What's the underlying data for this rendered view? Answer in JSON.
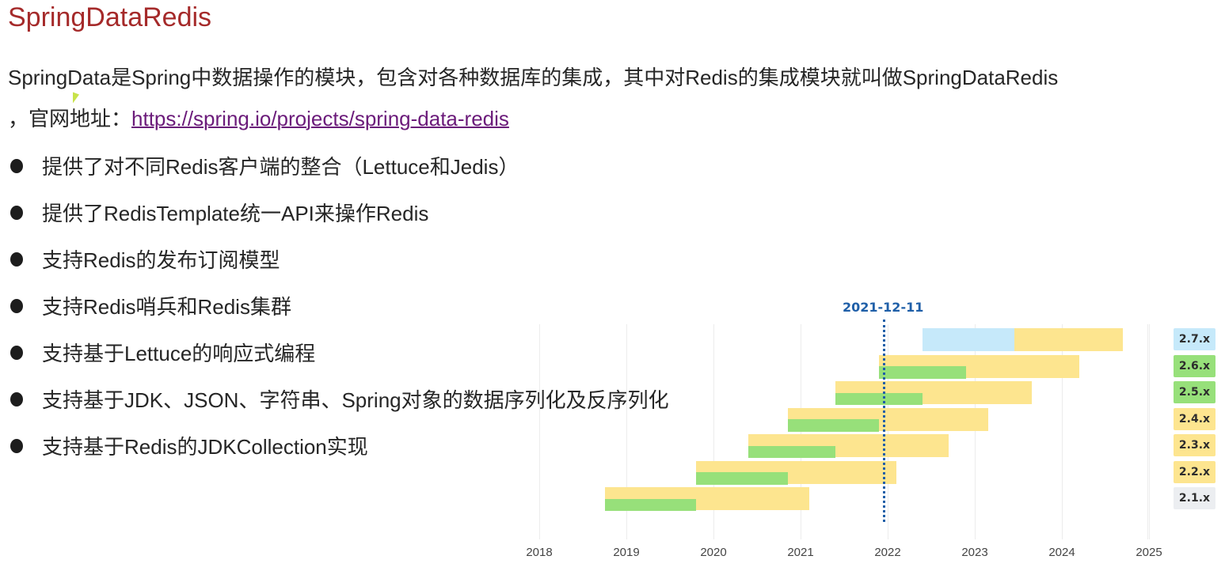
{
  "page": {
    "title": "SpringDataRedis",
    "intro_text": "SpringData是Spring中数据操作的模块，包含对各种数据库的集成，其中对Redis的集成模块就叫做SpringDataRedis",
    "intro_prefix2": "，官网地址：",
    "link_text": "https://spring.io/projects/spring-data-redis",
    "bullets": [
      "提供了对不同Redis客户端的整合（Lettuce和Jedis）",
      "提供了RedisTemplate统一API来操作Redis",
      "支持Redis的发布订阅模型",
      "支持Redis哨兵和Redis集群",
      "支持基于Lettuce的响应式编程",
      "支持基于JDK、JSON、字符串、Spring对象的数据序列化及反序列化",
      "支持基于Redis的JDKCollection实现"
    ]
  },
  "colors": {
    "title": "#a52a2a",
    "link": "#6b1b7a",
    "yellow": "#fde58f",
    "green": "#97e07a",
    "blue": "#c6e9fa",
    "gray": "#eceef1",
    "today": "#1f5fa8"
  },
  "chart_data": {
    "type": "gantt",
    "title": "",
    "marker": {
      "label": "2021-12-11",
      "x": 2021.95
    },
    "x_ticks": [
      "2018",
      "2019",
      "2020",
      "2021",
      "2022",
      "2023",
      "2024",
      "2025"
    ],
    "xlim": [
      2018,
      2025.3
    ],
    "series": [
      {
        "name": "2.7.x",
        "badge_color": "blue",
        "start": 2022.4,
        "green_end": null,
        "blue_end": 2023.45,
        "end": 2024.7
      },
      {
        "name": "2.6.x",
        "badge_color": "green",
        "start": 2021.9,
        "green_end": 2022.9,
        "blue_end": null,
        "end": 2024.2
      },
      {
        "name": "2.5.x",
        "badge_color": "green",
        "start": 2021.4,
        "green_end": 2022.4,
        "blue_end": null,
        "end": 2023.65
      },
      {
        "name": "2.4.x",
        "badge_color": "yellow",
        "start": 2020.85,
        "green_end": 2021.9,
        "blue_end": null,
        "end": 2023.15
      },
      {
        "name": "2.3.x",
        "badge_color": "yellow",
        "start": 2020.4,
        "green_end": 2021.4,
        "blue_end": null,
        "end": 2022.7
      },
      {
        "name": "2.2.x",
        "badge_color": "yellow",
        "start": 2019.8,
        "green_end": 2020.85,
        "blue_end": null,
        "end": 2022.1
      },
      {
        "name": "2.1.x",
        "badge_color": "gray",
        "start": 2018.75,
        "green_end": 2019.8,
        "blue_end": null,
        "end": 2021.1
      }
    ]
  }
}
